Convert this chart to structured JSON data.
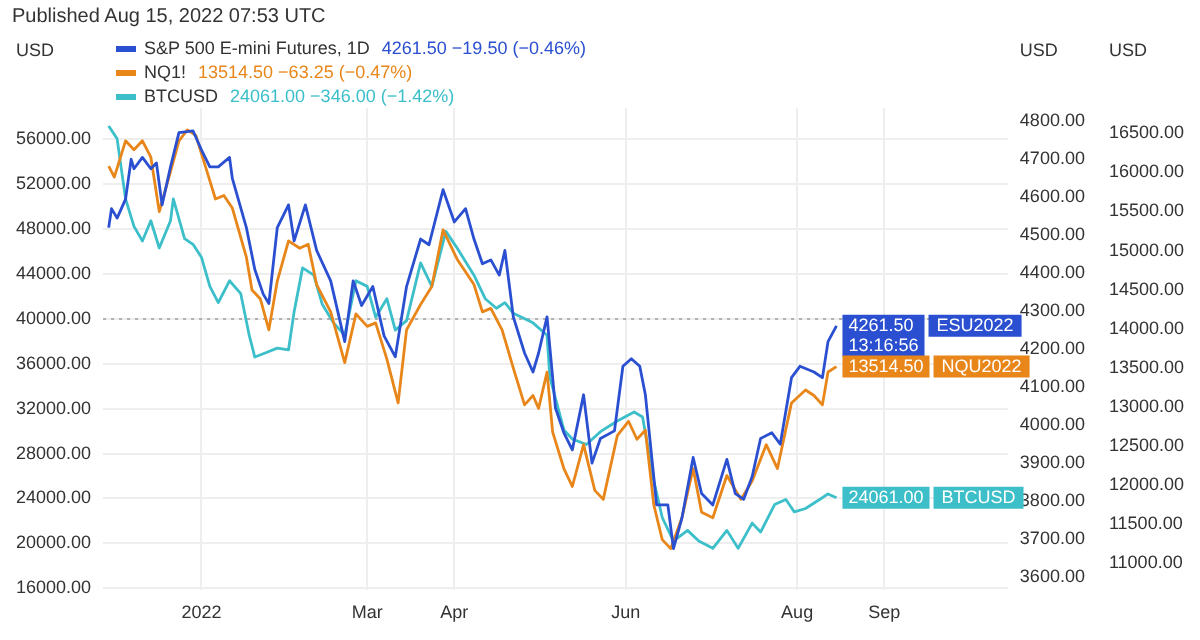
{
  "chart_data": {
    "type": "line",
    "grid": true,
    "legend": "top left",
    "ylabel": "USD",
    "y2label": "USD",
    "y3label": "USD",
    "xlim": [
      "2021-11-27",
      "2022-10-15"
    ],
    "xticks": [
      {
        "value": "2022-01-01",
        "label": "2022"
      },
      {
        "value": "2022-03-01",
        "label": "Mar"
      },
      {
        "value": "2022-04-01",
        "label": "Apr"
      },
      {
        "value": "2022-06-01",
        "label": "Jun"
      },
      {
        "value": "2022-08-01",
        "label": "Aug"
      },
      {
        "value": "2022-09-01",
        "label": "Sep"
      }
    ],
    "ylim": [
      15800,
      58800
    ],
    "yticks": [
      {
        "value": 16000,
        "label": "16000.00"
      },
      {
        "value": 20000,
        "label": "20000.00"
      },
      {
        "value": 24000,
        "label": "24000.00"
      },
      {
        "value": 28000,
        "label": "28000.00"
      },
      {
        "value": 32000,
        "label": "32000.00"
      },
      {
        "value": 36000,
        "label": "36000.00"
      },
      {
        "value": 40000,
        "label": "40000.00"
      },
      {
        "value": 44000,
        "label": "44000.00"
      },
      {
        "value": 48000,
        "label": "48000.00"
      },
      {
        "value": 52000,
        "label": "52000.00"
      },
      {
        "value": 56000,
        "label": "56000.00"
      }
    ],
    "y2lim": [
      3565,
      4835
    ],
    "y2ticks": [
      {
        "value": 3600,
        "label": "3600.00"
      },
      {
        "value": 3700,
        "label": "3700.00"
      },
      {
        "value": 3800,
        "label": "3800.00"
      },
      {
        "value": 3900,
        "label": "3900.00"
      },
      {
        "value": 4000,
        "label": "4000.00"
      },
      {
        "value": 4100,
        "label": "4100.00"
      },
      {
        "value": 4200,
        "label": "4200.00"
      },
      {
        "value": 4300,
        "label": "4300.00"
      },
      {
        "value": 4400,
        "label": "4400.00"
      },
      {
        "value": 4500,
        "label": "4500.00"
      },
      {
        "value": 4600,
        "label": "4600.00"
      },
      {
        "value": 4700,
        "label": "4700.00"
      },
      {
        "value": 4800,
        "label": "4800.00"
      }
    ],
    "y3lim": [
      10650,
      16825
    ],
    "y3ticks": [
      {
        "value": 11000,
        "label": "11000.00"
      },
      {
        "value": 11500,
        "label": "11500.00"
      },
      {
        "value": 12000,
        "label": "12000.00"
      },
      {
        "value": 12500,
        "label": "12500.00"
      },
      {
        "value": 13000,
        "label": "13000.00"
      },
      {
        "value": 13500,
        "label": "13500.00"
      },
      {
        "value": 14000,
        "label": "14000.00"
      },
      {
        "value": 14500,
        "label": "14500.00"
      },
      {
        "value": 15000,
        "label": "15000.00"
      },
      {
        "value": 15500,
        "label": "15500.00"
      },
      {
        "value": 16000,
        "label": "16000.00"
      },
      {
        "value": 16500,
        "label": "16500.00"
      }
    ],
    "ref_lines": [
      {
        "axis": "y",
        "value": 40000,
        "color": "#b0b0b0",
        "line_style": "dotted"
      }
    ],
    "annotations": [
      "Published Aug 15, 2022 07:53 UTC",
      "4261.50 −19.50 (−0.46%)",
      "13514.50 −63.25 (−0.47%)",
      "24061.00 −346.00 (−1.42%)",
      "ESU2022",
      "NQU2022",
      "BTCUSD",
      "13:16:56"
    ],
    "series": [
      {
        "name": "S&P 500 E-mini Futures, 1D",
        "color": "#2a4fd0",
        "axis": "y2",
        "x": [
          "2021-11-29",
          "2021-11-30",
          "2021-12-02",
          "2021-12-05",
          "2021-12-07",
          "2021-12-08",
          "2021-12-11",
          "2021-12-14",
          "2021-12-16",
          "2021-12-18",
          "2021-12-21",
          "2021-12-24",
          "2021-12-29",
          "2022-01-01",
          "2022-01-04",
          "2022-01-07",
          "2022-01-11",
          "2022-01-12",
          "2022-01-17",
          "2022-01-20",
          "2022-01-23",
          "2022-01-25",
          "2022-01-28",
          "2022-02-01",
          "2022-02-03",
          "2022-02-07",
          "2022-02-11",
          "2022-02-16",
          "2022-02-21",
          "2022-02-24",
          "2022-02-27",
          "2022-03-03",
          "2022-03-07",
          "2022-03-11",
          "2022-03-15",
          "2022-03-20",
          "2022-03-23",
          "2022-03-28",
          "2022-04-01",
          "2022-04-05",
          "2022-04-08",
          "2022-04-11",
          "2022-04-14",
          "2022-04-17",
          "2022-04-19",
          "2022-04-22",
          "2022-04-26",
          "2022-04-29",
          "2022-05-01",
          "2022-05-04",
          "2022-05-07",
          "2022-05-10",
          "2022-05-13",
          "2022-05-17",
          "2022-05-20",
          "2022-05-23",
          "2022-05-28",
          "2022-05-31",
          "2022-06-03",
          "2022-06-06",
          "2022-06-08",
          "2022-06-12",
          "2022-06-16",
          "2022-06-18",
          "2022-06-21",
          "2022-06-25",
          "2022-06-28",
          "2022-07-02",
          "2022-07-07",
          "2022-07-10",
          "2022-07-13",
          "2022-07-16",
          "2022-07-19",
          "2022-07-23",
          "2022-07-26",
          "2022-07-30",
          "2022-08-02",
          "2022-08-07",
          "2022-08-10",
          "2022-08-12",
          "2022-08-15"
        ],
        "values": [
          4520,
          4570,
          4545,
          4595,
          4700,
          4675,
          4705,
          4675,
          4690,
          4580,
          4680,
          4770,
          4775,
          4725,
          4680,
          4680,
          4705,
          4650,
          4520,
          4410,
          4345,
          4320,
          4520,
          4580,
          4485,
          4580,
          4460,
          4380,
          4220,
          4380,
          4315,
          4365,
          4235,
          4180,
          4365,
          4490,
          4475,
          4620,
          4535,
          4570,
          4490,
          4425,
          4435,
          4395,
          4460,
          4285,
          4190,
          4140,
          4190,
          4285,
          4045,
          3980,
          3935,
          4080,
          3900,
          3965,
          3985,
          4155,
          4175,
          4155,
          4080,
          3790,
          3790,
          3675,
          3755,
          3915,
          3820,
          3790,
          3910,
          3820,
          3805,
          3865,
          3965,
          3980,
          3950,
          4125,
          4155,
          4140,
          4125,
          4220,
          4261.5
        ],
        "value_labels": [
          null,
          null,
          null,
          null,
          null,
          null,
          null,
          null,
          null,
          null,
          null,
          null,
          null,
          null,
          null,
          null,
          null,
          null,
          null,
          null,
          null,
          null,
          null,
          null,
          null,
          null,
          null,
          null,
          null,
          null,
          null,
          null,
          null,
          null,
          null,
          null,
          null,
          null,
          null,
          null,
          null,
          null,
          null,
          null,
          null,
          null,
          null,
          null,
          null,
          null,
          null,
          null,
          null,
          null,
          null,
          null,
          null,
          null,
          null,
          null,
          null,
          null,
          null,
          null,
          null,
          null,
          null,
          null,
          null,
          null,
          null,
          null,
          null,
          null,
          null,
          null,
          null,
          null,
          null,
          null,
          "4261.50"
        ]
      },
      {
        "name": "NQ1!",
        "color": "#e8861a",
        "axis": "y3",
        "x": [
          "2021-11-29",
          "2021-12-01",
          "2021-12-05",
          "2021-12-08",
          "2021-12-11",
          "2021-12-14",
          "2021-12-17",
          "2021-12-21",
          "2021-12-24",
          "2021-12-27",
          "2021-12-30",
          "2022-01-03",
          "2022-01-06",
          "2022-01-09",
          "2022-01-12",
          "2022-01-17",
          "2022-01-19",
          "2022-01-22",
          "2022-01-25",
          "2022-01-28",
          "2022-02-01",
          "2022-02-05",
          "2022-02-08",
          "2022-02-11",
          "2022-02-16",
          "2022-02-21",
          "2022-02-25",
          "2022-03-01",
          "2022-03-04",
          "2022-03-08",
          "2022-03-12",
          "2022-03-15",
          "2022-03-20",
          "2022-03-24",
          "2022-03-28",
          "2022-04-02",
          "2022-04-08",
          "2022-04-11",
          "2022-04-14",
          "2022-04-18",
          "2022-04-22",
          "2022-04-26",
          "2022-04-29",
          "2022-05-01",
          "2022-05-04",
          "2022-05-06",
          "2022-05-10",
          "2022-05-13",
          "2022-05-17",
          "2022-05-21",
          "2022-05-24",
          "2022-05-29",
          "2022-06-02",
          "2022-06-05",
          "2022-06-08",
          "2022-06-11",
          "2022-06-14",
          "2022-06-17",
          "2022-06-21",
          "2022-06-25",
          "2022-06-28",
          "2022-07-02",
          "2022-07-07",
          "2022-07-12",
          "2022-07-16",
          "2022-07-21",
          "2022-07-25",
          "2022-07-30",
          "2022-08-04",
          "2022-08-07",
          "2022-08-10",
          "2022-08-12",
          "2022-08-15"
        ],
        "values": [
          16080,
          15940,
          16405,
          16290,
          16405,
          16195,
          15500,
          16010,
          16405,
          16545,
          16475,
          16010,
          15660,
          15705,
          15545,
          14915,
          14495,
          14380,
          13985,
          14610,
          15125,
          15030,
          15080,
          14565,
          14215,
          13565,
          14190,
          14030,
          14075,
          13610,
          13050,
          13985,
          14310,
          14540,
          15265,
          14890,
          14565,
          14215,
          14260,
          13985,
          13495,
          13025,
          13145,
          12980,
          13445,
          12675,
          12210,
          11980,
          12515,
          11930,
          11815,
          12630,
          12815,
          12585,
          12700,
          11745,
          11300,
          11185,
          11580,
          12210,
          11650,
          11580,
          12120,
          11815,
          12050,
          12515,
          12210,
          13050,
          13215,
          13145,
          13025,
          13445,
          13514.5
        ],
        "value_labels": [
          null,
          null,
          null,
          null,
          null,
          null,
          null,
          null,
          null,
          null,
          null,
          null,
          null,
          null,
          null,
          null,
          null,
          null,
          null,
          null,
          null,
          null,
          null,
          null,
          null,
          null,
          null,
          null,
          null,
          null,
          null,
          null,
          null,
          null,
          null,
          null,
          null,
          null,
          null,
          null,
          null,
          null,
          null,
          null,
          null,
          null,
          null,
          null,
          null,
          null,
          null,
          null,
          null,
          null,
          null,
          null,
          null,
          null,
          null,
          null,
          null,
          null,
          null,
          null,
          null,
          null,
          null,
          null,
          null,
          null,
          null,
          null,
          "13514.50"
        ]
      },
      {
        "name": "BTCUSD",
        "color": "#3cbfc9",
        "axis": "y",
        "x": [
          "2021-11-29",
          "2021-12-02",
          "2021-12-05",
          "2021-12-08",
          "2021-12-11",
          "2021-12-14",
          "2021-12-17",
          "2021-12-21",
          "2021-12-22",
          "2021-12-26",
          "2021-12-29",
          "2022-01-01",
          "2022-01-04",
          "2022-01-07",
          "2022-01-11",
          "2022-01-15",
          "2022-01-18",
          "2022-01-20",
          "2022-01-23",
          "2022-01-28",
          "2022-02-01",
          "2022-02-03",
          "2022-02-06",
          "2022-02-10",
          "2022-02-13",
          "2022-02-17",
          "2022-02-21",
          "2022-02-25",
          "2022-03-01",
          "2022-03-04",
          "2022-03-08",
          "2022-03-11",
          "2022-03-15",
          "2022-03-20",
          "2022-03-24",
          "2022-03-29",
          "2022-04-02",
          "2022-04-08",
          "2022-04-12",
          "2022-04-16",
          "2022-04-19",
          "2022-04-22",
          "2022-04-29",
          "2022-05-04",
          "2022-05-05",
          "2022-05-10",
          "2022-05-13",
          "2022-05-18",
          "2022-05-23",
          "2022-05-29",
          "2022-06-04",
          "2022-06-07",
          "2022-06-11",
          "2022-06-14",
          "2022-06-18",
          "2022-06-23",
          "2022-06-27",
          "2022-07-02",
          "2022-07-07",
          "2022-07-11",
          "2022-07-16",
          "2022-07-19",
          "2022-07-24",
          "2022-07-28",
          "2022-07-31",
          "2022-08-04",
          "2022-08-09",
          "2022-08-12",
          "2022-08-15"
        ],
        "values": [
          57200,
          56050,
          50700,
          48250,
          46950,
          48750,
          46320,
          48750,
          50700,
          47150,
          46650,
          45500,
          42900,
          41450,
          43400,
          42250,
          38550,
          36600,
          36900,
          37400,
          37250,
          40650,
          44550,
          43900,
          41300,
          39650,
          38550,
          43400,
          42900,
          40150,
          41800,
          39000,
          39850,
          45000,
          42900,
          47800,
          46320,
          43900,
          41800,
          40950,
          41450,
          40500,
          39650,
          38550,
          34800,
          30100,
          29300,
          28800,
          29950,
          30900,
          31700,
          31250,
          25550,
          22300,
          20200,
          21150,
          20200,
          19550,
          21150,
          19550,
          21800,
          21000,
          23450,
          23900,
          22800,
          23100,
          23900,
          24400,
          24061
        ],
        "value_labels": [
          null,
          null,
          null,
          null,
          null,
          null,
          null,
          null,
          null,
          null,
          null,
          null,
          null,
          null,
          null,
          null,
          null,
          null,
          null,
          null,
          null,
          null,
          null,
          null,
          null,
          null,
          null,
          null,
          null,
          null,
          null,
          null,
          null,
          null,
          null,
          null,
          null,
          null,
          null,
          null,
          null,
          null,
          null,
          null,
          null,
          null,
          null,
          null,
          null,
          null,
          null,
          null,
          null,
          null,
          null,
          null,
          null,
          null,
          null,
          null,
          null,
          null,
          null,
          null,
          null,
          null,
          null,
          null,
          "24061.00"
        ]
      }
    ]
  }
}
